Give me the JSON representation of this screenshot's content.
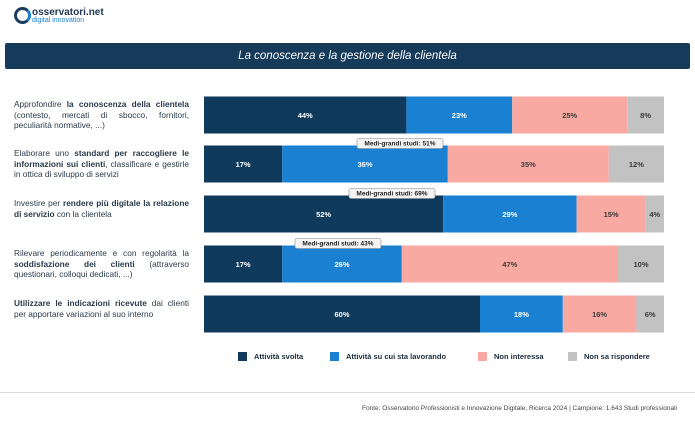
{
  "logo": {
    "name": "osservatori.net",
    "tagline": "digital innovation"
  },
  "footer": "Fonte: Osservatorio Professionisti e Innovazione Digitale, Ricerca 2024 | Campione: 1.643 Studi professionali",
  "chart_data": {
    "type": "stacked-bar-horizontal",
    "title": "La conoscenza e la gestione della clientela",
    "categories": [
      [
        {
          "text": "Approfondire ",
          "bold": false
        },
        {
          "text": "la conoscenza della clientela",
          "bold": true
        },
        {
          "text": " (contesto, mercati di sbocco, fornitori, peculiarità normative, ...)",
          "bold": false
        }
      ],
      [
        {
          "text": "Elaborare uno ",
          "bold": false
        },
        {
          "text": "standard per raccogliere le informazioni sui clienti",
          "bold": true
        },
        {
          "text": ", classificare e gestirle in ottica di sviluppo di servizi",
          "bold": false
        }
      ],
      [
        {
          "text": "Investire per ",
          "bold": false
        },
        {
          "text": "rendere più digitale la relazione di servizio",
          "bold": true
        },
        {
          "text": " con la clientela",
          "bold": false
        }
      ],
      [
        {
          "text": "Rilevare periodicamente e con regolarità la ",
          "bold": false
        },
        {
          "text": "soddisfazione dei clienti",
          "bold": true
        },
        {
          "text": " (attraverso questionari, colloqui dedicati, ...)",
          "bold": false
        }
      ],
      [
        {
          "text": "Utilizzare le indicazioni ricevute",
          "bold": true
        },
        {
          "text": " dai clienti per apportare variazioni al suo interno",
          "bold": false
        }
      ]
    ],
    "annotations": [
      null,
      "Medi-grandi studi: 51%",
      "Medi-grandi studi: 69%",
      "Medi-grandi studi: 43%",
      null
    ],
    "xlim": [
      0,
      100
    ],
    "series": [
      {
        "name": "Attività svolta",
        "color": "#0f3a5c",
        "label_color": "#ffffff",
        "values": [
          44,
          17,
          52,
          17,
          60
        ],
        "value_labels": [
          "44%",
          "17%",
          "52%",
          "17%",
          "60%"
        ]
      },
      {
        "name": "Attività su cui sta lavorando",
        "color": "#1a80d2",
        "label_color": "#ffffff",
        "values": [
          23,
          36,
          29,
          26,
          18
        ],
        "value_labels": [
          "23%",
          "36%",
          "29%",
          "26%",
          "18%"
        ]
      },
      {
        "name": "Non interessa",
        "color": "#f8aaa2",
        "label_color": "#3a3a3a",
        "values": [
          25,
          35,
          15,
          47,
          16
        ],
        "value_labels": [
          "25%",
          "35%",
          "15%",
          "47%",
          "16%"
        ]
      },
      {
        "name": "Non sa rispondere",
        "color": "#c2c2c2",
        "label_color": "#3a3a3a",
        "values": [
          8,
          12,
          4,
          10,
          6
        ],
        "value_labels": [
          "8%",
          "12%",
          "4%",
          "10%",
          "6%"
        ]
      }
    ]
  }
}
